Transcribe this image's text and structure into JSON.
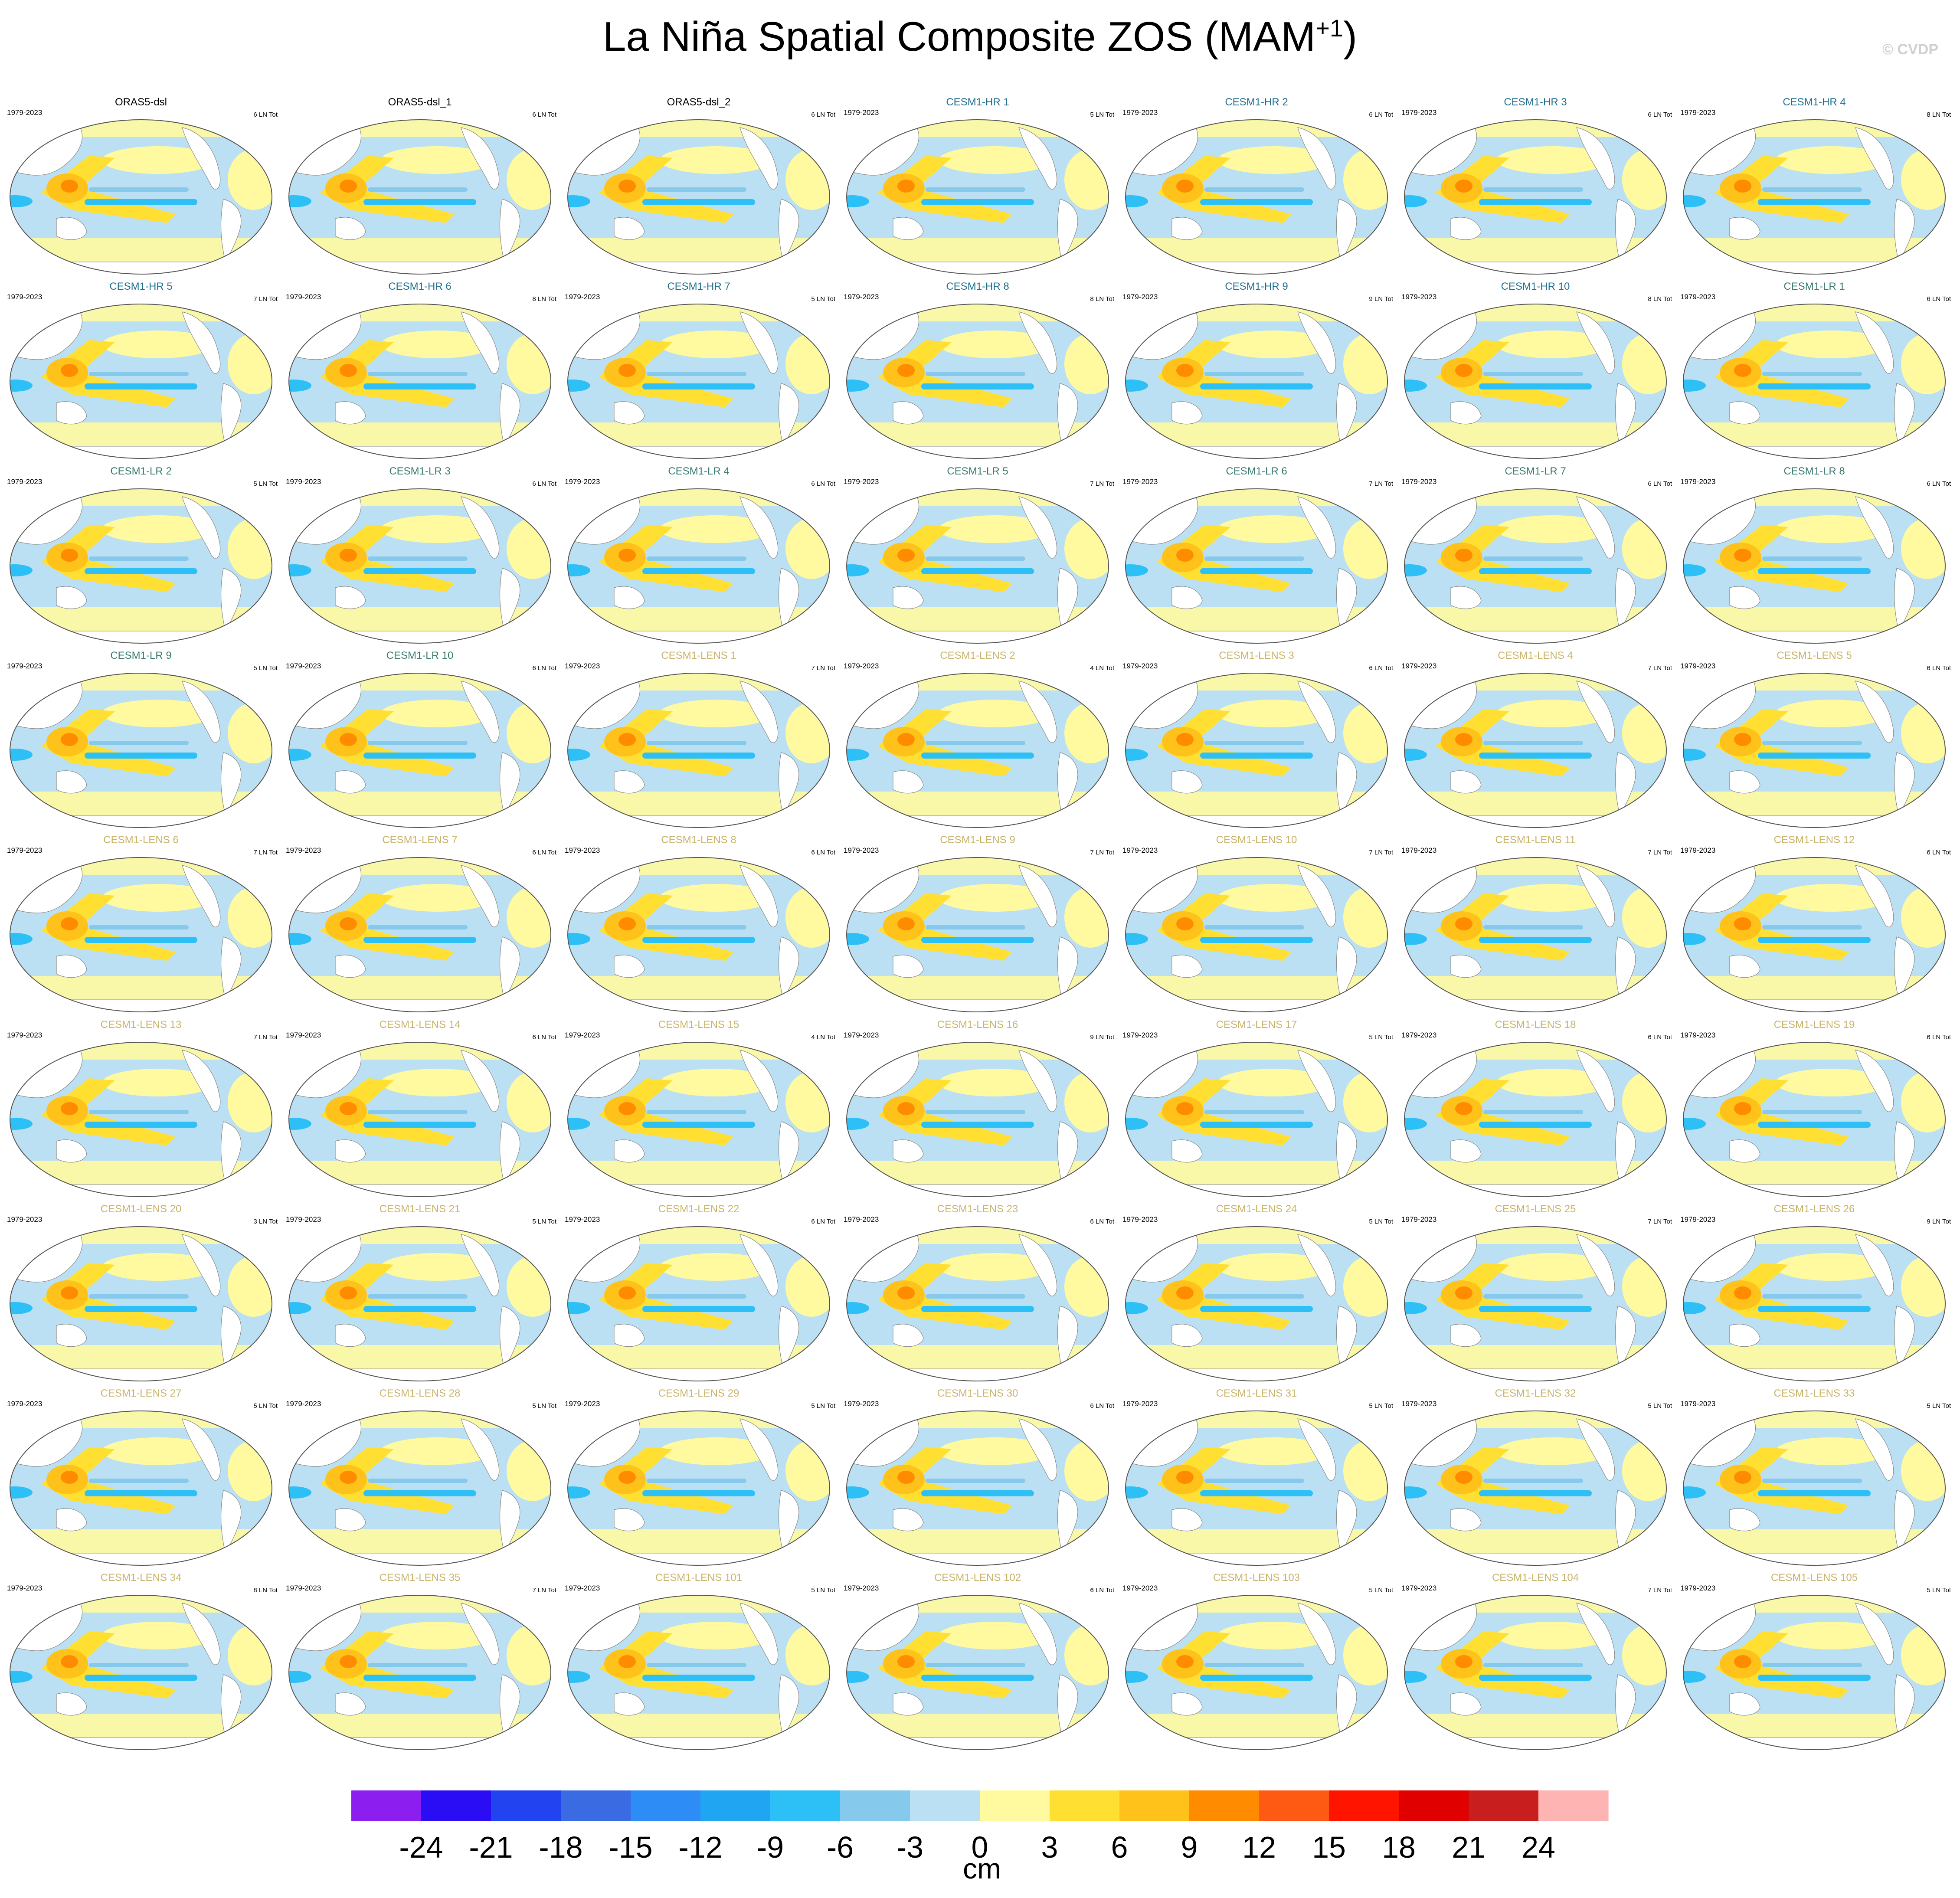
{
  "title": "La Niña Spatial Composite ZOS (MAM",
  "title_superscript": "+1",
  "title_suffix": ")",
  "credit": "© CVDP",
  "chart_data": {
    "type": "heatmap",
    "variable": "ZOS",
    "season": "MAM+1",
    "projection": "Robinson global maps (Pacific-centered)",
    "colorbar": {
      "unit_label": "cm",
      "ticks": [
        -24,
        -21,
        -18,
        -15,
        -12,
        -9,
        -6,
        -3,
        0,
        3,
        6,
        9,
        12,
        15,
        18,
        21,
        24
      ],
      "tick_labels": [
        "-24",
        "-21",
        "-18",
        "-15",
        "-12",
        "-9",
        "-6",
        "-3",
        "0",
        "3",
        "6",
        "9",
        "12",
        "15",
        "18",
        "21",
        "24"
      ],
      "colors": [
        "#8c1ff0",
        "#2a0df5",
        "#2143f0",
        "#3b6be3",
        "#2d8cf5",
        "#20a5f2",
        "#2dc0f7",
        "#85c9ec",
        "#bce0f3",
        "#fffaa0",
        "#ffe032",
        "#ffc21a",
        "#ff8c00",
        "#ff5a14",
        "#ff1400",
        "#e00000",
        "#c81e1e",
        "#ffb4b4"
      ]
    },
    "panels": [
      {
        "name": "ORAS5-dsl",
        "years": "1979-2023",
        "count": "6 LN Tot",
        "group": "obs"
      },
      {
        "name": "ORAS5-dsl_1",
        "years": "",
        "count": "6 LN Tot",
        "group": "obs"
      },
      {
        "name": "ORAS5-dsl_2",
        "years": "",
        "count": "6 LN Tot",
        "group": "obs"
      },
      {
        "name": "CESM1-HR 1",
        "years": "1979-2023",
        "count": "5 LN Tot",
        "group": "hr"
      },
      {
        "name": "CESM1-HR 2",
        "years": "1979-2023",
        "count": "6 LN Tot",
        "group": "hr"
      },
      {
        "name": "CESM1-HR 3",
        "years": "1979-2023",
        "count": "6 LN Tot",
        "group": "hr"
      },
      {
        "name": "CESM1-HR 4",
        "years": "1979-2023",
        "count": "8 LN Tot",
        "group": "hr"
      },
      {
        "name": "CESM1-HR 5",
        "years": "1979-2023",
        "count": "7 LN Tot",
        "group": "hr"
      },
      {
        "name": "CESM1-HR 6",
        "years": "1979-2023",
        "count": "8 LN Tot",
        "group": "hr"
      },
      {
        "name": "CESM1-HR 7",
        "years": "1979-2023",
        "count": "5 LN Tot",
        "group": "hr"
      },
      {
        "name": "CESM1-HR 8",
        "years": "1979-2023",
        "count": "8 LN Tot",
        "group": "hr"
      },
      {
        "name": "CESM1-HR 9",
        "years": "1979-2023",
        "count": "9 LN Tot",
        "group": "hr"
      },
      {
        "name": "CESM1-HR 10",
        "years": "1979-2023",
        "count": "8 LN Tot",
        "group": "hr"
      },
      {
        "name": "CESM1-LR 1",
        "years": "1979-2023",
        "count": "6 LN Tot",
        "group": "lr"
      },
      {
        "name": "CESM1-LR 2",
        "years": "1979-2023",
        "count": "5 LN Tot",
        "group": "lr"
      },
      {
        "name": "CESM1-LR 3",
        "years": "1979-2023",
        "count": "6 LN Tot",
        "group": "lr"
      },
      {
        "name": "CESM1-LR 4",
        "years": "1979-2023",
        "count": "6 LN Tot",
        "group": "lr"
      },
      {
        "name": "CESM1-LR 5",
        "years": "1979-2023",
        "count": "7 LN Tot",
        "group": "lr"
      },
      {
        "name": "CESM1-LR 6",
        "years": "1979-2023",
        "count": "7 LN Tot",
        "group": "lr"
      },
      {
        "name": "CESM1-LR 7",
        "years": "1979-2023",
        "count": "6 LN Tot",
        "group": "lr"
      },
      {
        "name": "CESM1-LR 8",
        "years": "1979-2023",
        "count": "6 LN Tot",
        "group": "lr"
      },
      {
        "name": "CESM1-LR 9",
        "years": "1979-2023",
        "count": "5 LN Tot",
        "group": "lr"
      },
      {
        "name": "CESM1-LR 10",
        "years": "1979-2023",
        "count": "6 LN Tot",
        "group": "lr"
      },
      {
        "name": "CESM1-LENS 1",
        "years": "1979-2023",
        "count": "7 LN Tot",
        "group": "lens"
      },
      {
        "name": "CESM1-LENS 2",
        "years": "1979-2023",
        "count": "4 LN Tot",
        "group": "lens"
      },
      {
        "name": "CESM1-LENS 3",
        "years": "1979-2023",
        "count": "6 LN Tot",
        "group": "lens"
      },
      {
        "name": "CESM1-LENS 4",
        "years": "1979-2023",
        "count": "7 LN Tot",
        "group": "lens"
      },
      {
        "name": "CESM1-LENS 5",
        "years": "1979-2023",
        "count": "6 LN Tot",
        "group": "lens"
      },
      {
        "name": "CESM1-LENS 6",
        "years": "1979-2023",
        "count": "7 LN Tot",
        "group": "lens"
      },
      {
        "name": "CESM1-LENS 7",
        "years": "1979-2023",
        "count": "6 LN Tot",
        "group": "lens"
      },
      {
        "name": "CESM1-LENS 8",
        "years": "1979-2023",
        "count": "6 LN Tot",
        "group": "lens"
      },
      {
        "name": "CESM1-LENS 9",
        "years": "1979-2023",
        "count": "7 LN Tot",
        "group": "lens"
      },
      {
        "name": "CESM1-LENS 10",
        "years": "1979-2023",
        "count": "7 LN Tot",
        "group": "lens"
      },
      {
        "name": "CESM1-LENS 11",
        "years": "1979-2023",
        "count": "7 LN Tot",
        "group": "lens"
      },
      {
        "name": "CESM1-LENS 12",
        "years": "1979-2023",
        "count": "6 LN Tot",
        "group": "lens"
      },
      {
        "name": "CESM1-LENS 13",
        "years": "1979-2023",
        "count": "7 LN Tot",
        "group": "lens"
      },
      {
        "name": "CESM1-LENS 14",
        "years": "1979-2023",
        "count": "6 LN Tot",
        "group": "lens"
      },
      {
        "name": "CESM1-LENS 15",
        "years": "1979-2023",
        "count": "4 LN Tot",
        "group": "lens"
      },
      {
        "name": "CESM1-LENS 16",
        "years": "1979-2023",
        "count": "9 LN Tot",
        "group": "lens"
      },
      {
        "name": "CESM1-LENS 17",
        "years": "1979-2023",
        "count": "5 LN Tot",
        "group": "lens"
      },
      {
        "name": "CESM1-LENS 18",
        "years": "1979-2023",
        "count": "6 LN Tot",
        "group": "lens"
      },
      {
        "name": "CESM1-LENS 19",
        "years": "1979-2023",
        "count": "6 LN Tot",
        "group": "lens"
      },
      {
        "name": "CESM1-LENS 20",
        "years": "1979-2023",
        "count": "3 LN Tot",
        "group": "lens"
      },
      {
        "name": "CESM1-LENS 21",
        "years": "1979-2023",
        "count": "5 LN Tot",
        "group": "lens"
      },
      {
        "name": "CESM1-LENS 22",
        "years": "1979-2023",
        "count": "6 LN Tot",
        "group": "lens"
      },
      {
        "name": "CESM1-LENS 23",
        "years": "1979-2023",
        "count": "6 LN Tot",
        "group": "lens"
      },
      {
        "name": "CESM1-LENS 24",
        "years": "1979-2023",
        "count": "5 LN Tot",
        "group": "lens"
      },
      {
        "name": "CESM1-LENS 25",
        "years": "1979-2023",
        "count": "7 LN Tot",
        "group": "lens"
      },
      {
        "name": "CESM1-LENS 26",
        "years": "1979-2023",
        "count": "9 LN Tot",
        "group": "lens"
      },
      {
        "name": "CESM1-LENS 27",
        "years": "1979-2023",
        "count": "5 LN Tot",
        "group": "lens"
      },
      {
        "name": "CESM1-LENS 28",
        "years": "1979-2023",
        "count": "5 LN Tot",
        "group": "lens"
      },
      {
        "name": "CESM1-LENS 29",
        "years": "1979-2023",
        "count": "5 LN Tot",
        "group": "lens"
      },
      {
        "name": "CESM1-LENS 30",
        "years": "1979-2023",
        "count": "6 LN Tot",
        "group": "lens"
      },
      {
        "name": "CESM1-LENS 31",
        "years": "1979-2023",
        "count": "5 LN Tot",
        "group": "lens"
      },
      {
        "name": "CESM1-LENS 32",
        "years": "1979-2023",
        "count": "5 LN Tot",
        "group": "lens"
      },
      {
        "name": "CESM1-LENS 33",
        "years": "1979-2023",
        "count": "5 LN Tot",
        "group": "lens"
      },
      {
        "name": "CESM1-LENS 34",
        "years": "1979-2023",
        "count": "8 LN Tot",
        "group": "lens"
      },
      {
        "name": "CESM1-LENS 35",
        "years": "1979-2023",
        "count": "7 LN Tot",
        "group": "lens"
      },
      {
        "name": "CESM1-LENS 101",
        "years": "1979-2023",
        "count": "5 LN Tot",
        "group": "lens"
      },
      {
        "name": "CESM1-LENS 102",
        "years": "1979-2023",
        "count": "6 LN Tot",
        "group": "lens"
      },
      {
        "name": "CESM1-LENS 103",
        "years": "1979-2023",
        "count": "5 LN Tot",
        "group": "lens"
      },
      {
        "name": "CESM1-LENS 104",
        "years": "1979-2023",
        "count": "7 LN Tot",
        "group": "lens"
      },
      {
        "name": "CESM1-LENS 105",
        "years": "1979-2023",
        "count": "5 LN Tot",
        "group": "lens"
      }
    ],
    "group_title_colors": {
      "obs": "#000000",
      "hr": "#1f6f8f",
      "lr": "#3a7a6f",
      "lens": "#c8b46a"
    }
  }
}
